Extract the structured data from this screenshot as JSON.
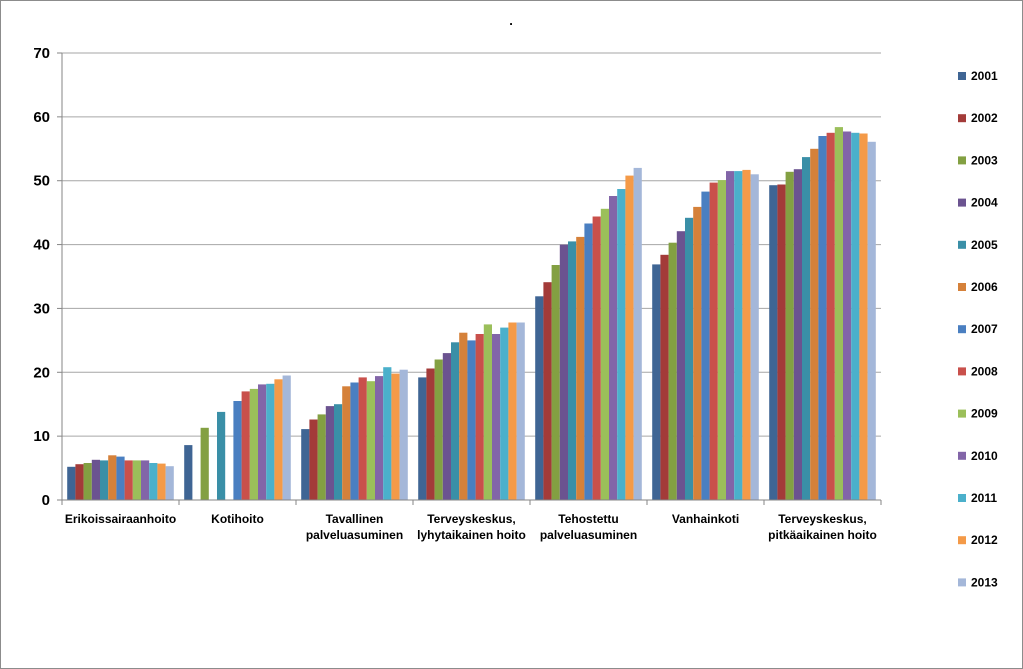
{
  "chart_data": {
    "type": "bar",
    "title": ".",
    "xlabel": "",
    "ylabel": "",
    "ylim": [
      0,
      70
    ],
    "yticks": [
      "0",
      "10",
      "20",
      "30",
      "40",
      "50",
      "60",
      "70"
    ],
    "grid": true,
    "legend_position": "right",
    "categories": [
      [
        "Erikoissairaanhoito"
      ],
      [
        "Kotihoito"
      ],
      [
        "Tavallinen",
        "palveluasuminen"
      ],
      [
        "Terveyskeskus,",
        "lyhytaikainen hoito"
      ],
      [
        "Tehostettu",
        "palveluasuminen"
      ],
      [
        "Vanhainkoti"
      ],
      [
        "Terveyskeskus,",
        "pitkäaikainen hoito"
      ]
    ],
    "series": [
      {
        "name": "2001",
        "color": "#3f6594",
        "values": [
          5.2,
          8.6,
          11.1,
          19.2,
          31.9,
          36.9,
          49.3
        ]
      },
      {
        "name": "2002",
        "color": "#a33b39",
        "values": [
          5.6,
          null,
          12.6,
          20.6,
          34.1,
          38.4,
          49.4
        ]
      },
      {
        "name": "2003",
        "color": "#83a042",
        "values": [
          5.8,
          11.3,
          13.4,
          22.0,
          36.8,
          40.3,
          51.4
        ]
      },
      {
        "name": "2004",
        "color": "#6b5390",
        "values": [
          6.3,
          null,
          14.7,
          23.0,
          40.0,
          42.1,
          51.8
        ]
      },
      {
        "name": "2005",
        "color": "#3a8fa7",
        "values": [
          6.2,
          13.8,
          15.0,
          24.7,
          40.5,
          44.2,
          53.7
        ]
      },
      {
        "name": "2006",
        "color": "#d5813a",
        "values": [
          7.0,
          null,
          17.8,
          26.2,
          41.2,
          45.9,
          55.0
        ]
      },
      {
        "name": "2007",
        "color": "#4a7fc1",
        "values": [
          6.8,
          15.5,
          18.4,
          25.0,
          43.3,
          48.3,
          57.0
        ]
      },
      {
        "name": "2008",
        "color": "#c9504b",
        "values": [
          6.2,
          17.0,
          19.2,
          26.0,
          44.4,
          49.7,
          57.5
        ]
      },
      {
        "name": "2009",
        "color": "#9bbf5a",
        "values": [
          6.2,
          17.4,
          18.6,
          27.5,
          45.6,
          50.1,
          58.4
        ]
      },
      {
        "name": "2010",
        "color": "#8265a8",
        "values": [
          6.2,
          18.1,
          19.4,
          26.0,
          47.6,
          51.5,
          57.7
        ]
      },
      {
        "name": "2011",
        "color": "#4bb0cb",
        "values": [
          5.8,
          18.2,
          20.8,
          27.0,
          48.7,
          51.5,
          57.5
        ]
      },
      {
        "name": "2012",
        "color": "#f49a48",
        "values": [
          5.7,
          18.9,
          19.8,
          27.8,
          50.8,
          51.7,
          57.4
        ]
      },
      {
        "name": "2013",
        "color": "#a4b7d9",
        "values": [
          5.3,
          19.5,
          20.4,
          27.8,
          52.0,
          51.0,
          56.1
        ]
      }
    ]
  }
}
